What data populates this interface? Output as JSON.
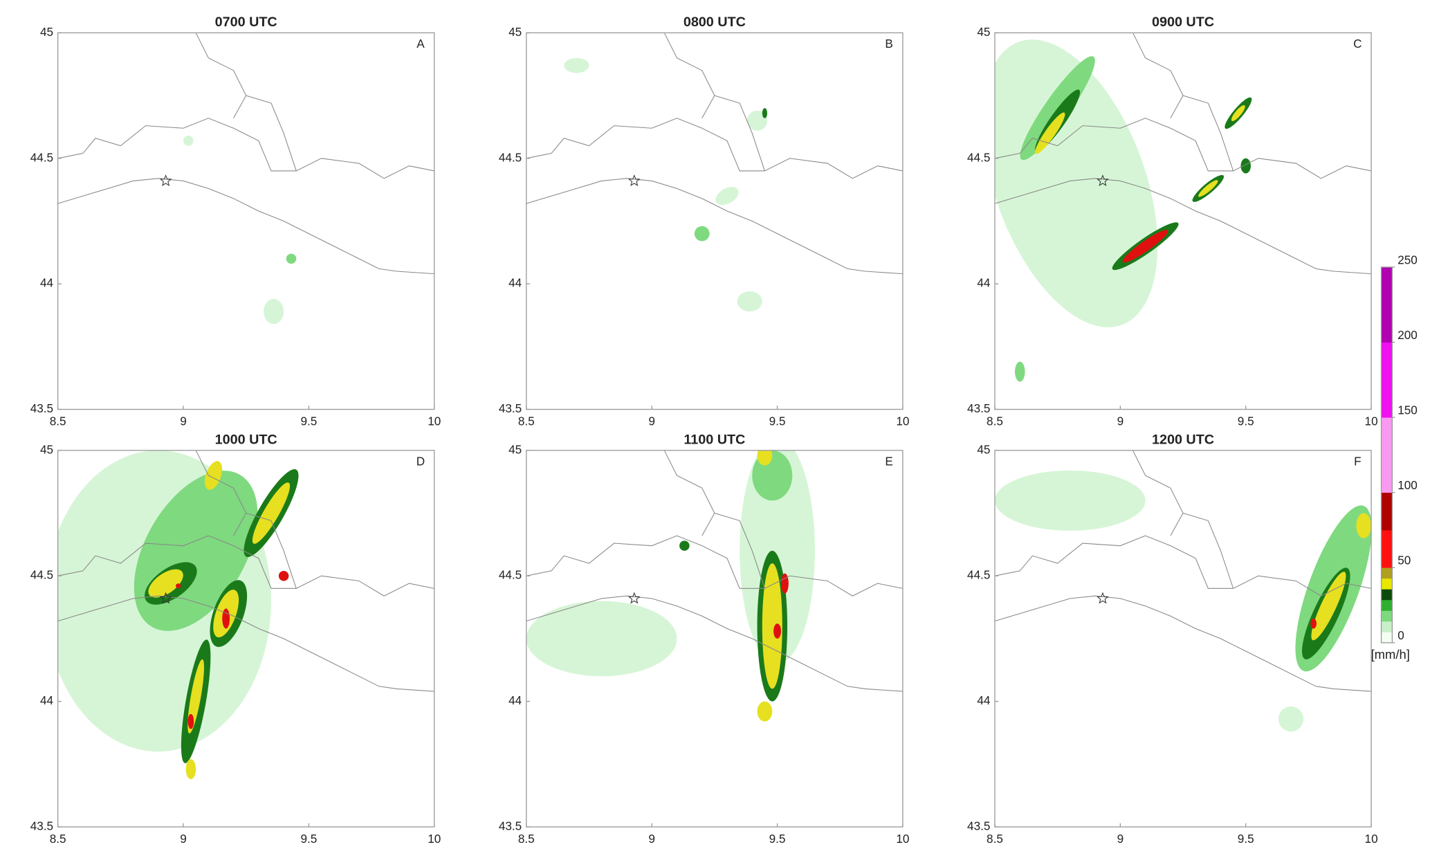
{
  "panels": [
    {
      "title": "0700 UTC",
      "letter": "A",
      "xlim": [
        8.5,
        10
      ],
      "ylim": [
        43.5,
        45
      ],
      "xticks": [
        8.5,
        9,
        9.5,
        10
      ],
      "yticks": [
        43.5,
        44,
        44.5,
        45
      ]
    },
    {
      "title": "0800 UTC",
      "letter": "B",
      "xlim": [
        8.5,
        10
      ],
      "ylim": [
        43.5,
        45
      ],
      "xticks": [
        8.5,
        9,
        9.5,
        10
      ],
      "yticks": [
        43.5,
        44,
        44.5,
        45
      ]
    },
    {
      "title": "0900 UTC",
      "letter": "C",
      "xlim": [
        8.5,
        10
      ],
      "ylim": [
        43.5,
        45
      ],
      "xticks": [
        8.5,
        9,
        9.5,
        10
      ],
      "yticks": [
        43.5,
        44,
        44.5,
        45
      ]
    },
    {
      "title": "1000 UTC",
      "letter": "D",
      "xlim": [
        8.5,
        10
      ],
      "ylim": [
        43.5,
        45
      ],
      "xticks": [
        8.5,
        9,
        9.5,
        10
      ],
      "yticks": [
        43.5,
        44,
        44.5,
        45
      ]
    },
    {
      "title": "1100 UTC",
      "letter": "E",
      "xlim": [
        8.5,
        10
      ],
      "ylim": [
        43.5,
        45
      ],
      "xticks": [
        8.5,
        9,
        9.5,
        10
      ],
      "yticks": [
        43.5,
        44,
        44.5,
        45
      ]
    },
    {
      "title": "1200 UTC",
      "letter": "F",
      "xlim": [
        8.5,
        10
      ],
      "ylim": [
        43.5,
        45
      ],
      "xticks": [
        8.5,
        9,
        9.5,
        10
      ],
      "yticks": [
        43.5,
        44,
        44.5,
        45
      ]
    }
  ],
  "colorbar": {
    "label": "[mm/h]",
    "lim": [
      0,
      250
    ],
    "ticks": [
      0,
      50,
      100,
      150,
      200,
      250
    ],
    "colors": [
      [
        "#f4fff4",
        "#c8f0c8",
        "#7fd97f",
        "#2fb02f",
        "#0a4a0a",
        "#e8e800",
        "#b0a020"
      ],
      [
        "#ff1010",
        "#b00000"
      ],
      [
        "#f79af0"
      ],
      [
        "#f010f0"
      ],
      [
        "#b000b0"
      ]
    ]
  }
}
